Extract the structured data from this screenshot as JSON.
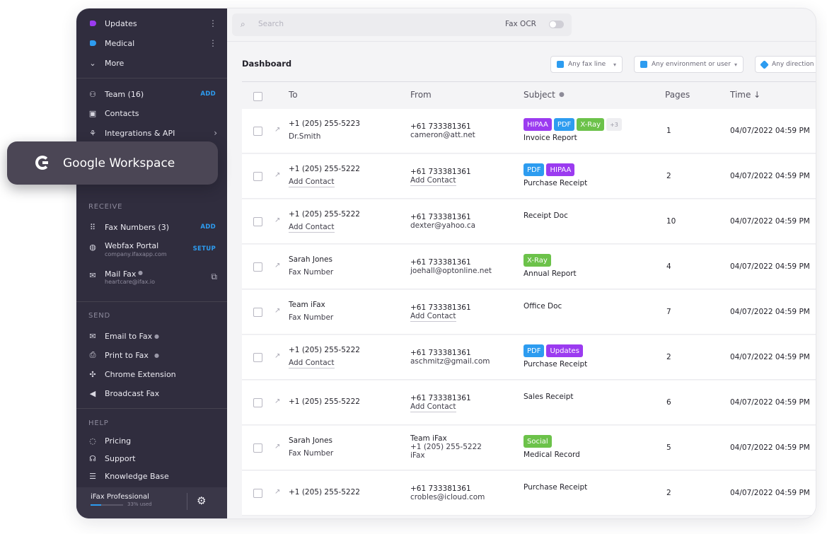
{
  "sidebar": {
    "top": [
      {
        "label": "Updates",
        "color": "#9b3bf0"
      },
      {
        "label": "Medical",
        "color": "#2d9cf0"
      },
      {
        "label": "More"
      }
    ],
    "team": {
      "label": "Team (16)",
      "action": "ADD"
    },
    "contacts": {
      "label": "Contacts"
    },
    "integrations": {
      "label": "Integrations & API"
    },
    "google_workspace": {
      "label": "Google Workspace"
    },
    "receive_heading": "RECEIVE",
    "fax_numbers": {
      "label": "Fax Numbers (3)",
      "action": "ADD"
    },
    "webfax": {
      "label": "Webfax Portal",
      "sub": "company.ifaxapp.com",
      "action": "SETUP"
    },
    "mailfax": {
      "label": "Mail Fax",
      "sub": "heartcare@ifax.io"
    },
    "send_heading": "SEND",
    "send": [
      {
        "label": "Email to Fax",
        "info": true
      },
      {
        "label": "Print to Fax",
        "info": true
      },
      {
        "label": "Chrome Extension"
      },
      {
        "label": "Broadcast Fax"
      }
    ],
    "help_heading": "HELP",
    "help": [
      {
        "label": "Pricing"
      },
      {
        "label": "Support"
      },
      {
        "label": "Knowledge Base"
      }
    ],
    "plan": {
      "name": "iFax Professional",
      "usage_text": "33% used",
      "usage_fraction": 0.33
    }
  },
  "search": {
    "placeholder": "Search",
    "fax_ocr_label": "Fax OCR",
    "fax_ocr_on": false
  },
  "page_title": "Dashboard",
  "filters": [
    "Any fax line",
    "Any environment or user",
    "Any direction"
  ],
  "table": {
    "headers": {
      "to": "To",
      "from": "From",
      "subject": "Subject",
      "pages": "Pages",
      "time": "Time ↓"
    },
    "rows": [
      {
        "to1": "+1 (205) 255-5223",
        "to2": "Dr.Smith",
        "to2_link": false,
        "from1": "+61 733381361",
        "from2": "cameron@att.net",
        "from2_link": false,
        "tags": [
          {
            "t": "HIPAA",
            "c": "#9b3bf0"
          },
          {
            "t": "PDF",
            "c": "#2d9cf0"
          },
          {
            "t": "X-Ray",
            "c": "#6cc24a"
          }
        ],
        "more": "+3",
        "subject": "Invoice Report",
        "pages": "1",
        "time": "04/07/2022 04:59 PM"
      },
      {
        "to1": "+1 (205) 255-5222",
        "to2": "Add Contact",
        "to2_link": true,
        "from1": "+61 733381361",
        "from2": "Add Contact",
        "from2_link": true,
        "tags": [
          {
            "t": "PDF",
            "c": "#2d9cf0"
          },
          {
            "t": "HIPAA",
            "c": "#9b3bf0"
          }
        ],
        "subject": "Purchase Receipt",
        "pages": "2",
        "time": "04/07/2022 04:59 PM"
      },
      {
        "to1": "+1 (205) 255-5222",
        "to2": "Add Contact",
        "to2_link": true,
        "from1": "+61 733381361",
        "from2": "dexter@yahoo.ca",
        "from2_link": false,
        "tags": [],
        "subject": "Receipt Doc",
        "pages": "10",
        "time": "04/07/2022 04:59 PM"
      },
      {
        "to1": "Sarah Jones",
        "to2": "Fax Number",
        "to2_link": false,
        "from1": "+61 733381361",
        "from2": "joehall@optonline.net",
        "from2_link": false,
        "tags": [
          {
            "t": "X-Ray",
            "c": "#6cc24a"
          }
        ],
        "subject": "Annual Report",
        "pages": "4",
        "time": "04/07/2022 04:59 PM"
      },
      {
        "to1": "Team iFax",
        "to2": "Fax Number",
        "to2_link": false,
        "from1": "+61 733381361",
        "from2": "Add Contact",
        "from2_link": true,
        "tags": [],
        "subject": "Office Doc",
        "pages": "7",
        "time": "04/07/2022 04:59 PM"
      },
      {
        "to1": "+1 (205) 255-5222",
        "to2": "Add Contact",
        "to2_link": true,
        "from1": "+61 733381361",
        "from2": "aschmitz@gmail.com",
        "from2_link": false,
        "tags": [
          {
            "t": "PDF",
            "c": "#2d9cf0"
          },
          {
            "t": "Updates",
            "c": "#9b3bf0"
          }
        ],
        "subject": "Purchase Receipt",
        "pages": "2",
        "time": "04/07/2022 04:59 PM"
      },
      {
        "to1": "+1 (205) 255-5222",
        "to2": "",
        "to2_link": false,
        "from1": "+61 733381361",
        "from2": "Add Contact",
        "from2_link": true,
        "tags": [],
        "subject": "Sales Receipt",
        "pages": "6",
        "time": "04/07/2022 04:59 PM"
      },
      {
        "to1": "Sarah Jones",
        "to2": "Fax Number",
        "to2_link": false,
        "from1": "Team iFax",
        "from2": "+1 (205) 255-5222",
        "from3": "iFax",
        "from2_link": false,
        "tags": [
          {
            "t": "Social",
            "c": "#6cc24a"
          }
        ],
        "subject": "Medical Record",
        "pages": "5",
        "time": "04/07/2022 04:59 PM"
      },
      {
        "to1": "+1 (205) 255-5222",
        "to2": "",
        "to2_link": false,
        "from1": "+61 733381361",
        "from2": "crobles@icloud.com",
        "from2_link": false,
        "tags": [],
        "subject": "Purchase Receipt",
        "pages": "2",
        "time": "04/07/2022 04:59 PM"
      }
    ]
  }
}
